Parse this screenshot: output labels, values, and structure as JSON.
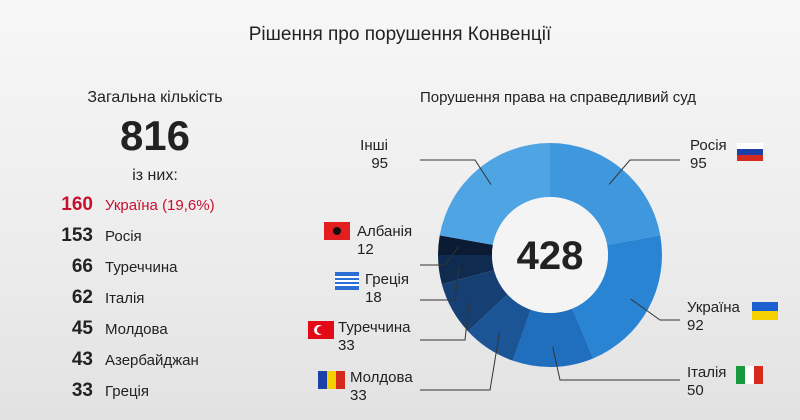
{
  "title": "Рішення про порушення Конвенції",
  "summary": {
    "label": "Загальна кількість",
    "total": 816,
    "sublabel": "із них:",
    "rows": [
      {
        "count": 160,
        "country": "Україна (19,6%)"
      },
      {
        "count": 153,
        "country": "Росія"
      },
      {
        "count": 66,
        "country": "Туреччина"
      },
      {
        "count": 62,
        "country": "Італія"
      },
      {
        "count": 45,
        "country": "Молдова"
      },
      {
        "count": 43,
        "country": "Азербайджан"
      },
      {
        "count": 33,
        "country": "Греція"
      }
    ]
  },
  "chart_data": {
    "type": "pie",
    "title": "Порушення права на справедливий суд",
    "center_label": 428,
    "categories": [
      "Росія",
      "Україна",
      "Італія",
      "Молдова",
      "Туреччина",
      "Греція",
      "Албанія",
      "Інші"
    ],
    "values": [
      95,
      92,
      50,
      33,
      33,
      18,
      12,
      95
    ],
    "colors": [
      "#3f97de",
      "#2a84d4",
      "#1f6fbe",
      "#1b5596",
      "#163f73",
      "#102b50",
      "#0b1b33",
      "#4fa4e4"
    ]
  }
}
